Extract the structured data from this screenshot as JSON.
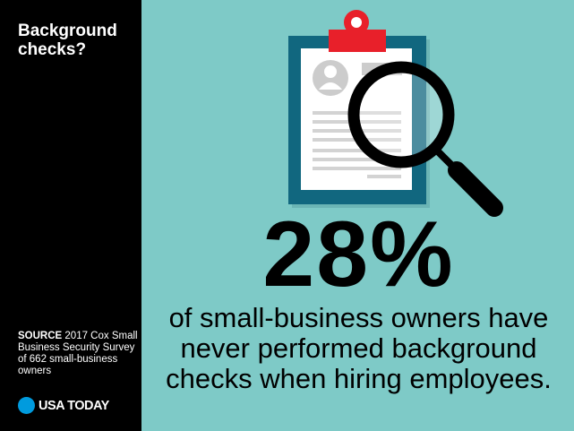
{
  "title": "Background checks?",
  "source": {
    "label": "SOURCE",
    "text": "2017 Cox Small Business Security Survey of 662 small-business owners"
  },
  "logo": {
    "text": "USA TODAY",
    "color": "#009bde"
  },
  "stat": {
    "value": "28%",
    "description": "of small-business owners have never performed background checks when hiring employees."
  },
  "colors": {
    "background": "#7ecac7",
    "sidebar": "#000000",
    "clipboard": "#11677f",
    "clip": "#e8202a"
  },
  "illustration": {
    "icons": [
      "clipboard-icon",
      "magnifying-glass-icon",
      "user-avatar-icon"
    ]
  }
}
